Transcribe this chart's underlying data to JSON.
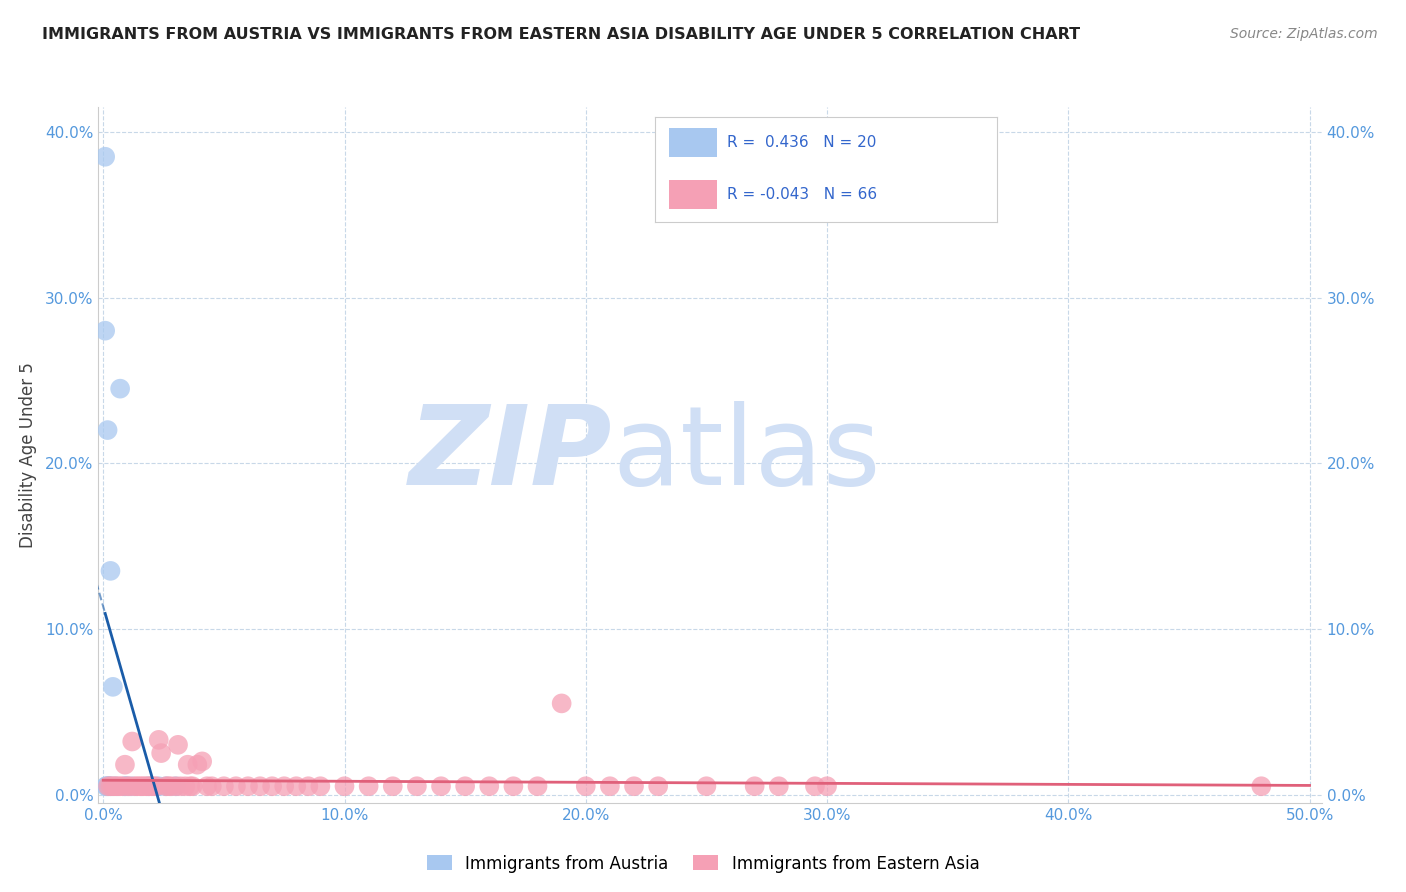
{
  "title": "IMMIGRANTS FROM AUSTRIA VS IMMIGRANTS FROM EASTERN ASIA DISABILITY AGE UNDER 5 CORRELATION CHART",
  "source": "Source: ZipAtlas.com",
  "ylabel": "Disability Age Under 5",
  "xlim": [
    -0.002,
    0.505
  ],
  "ylim": [
    -0.005,
    0.415
  ],
  "xticks": [
    0.0,
    0.1,
    0.2,
    0.3,
    0.4,
    0.5
  ],
  "xtick_labels": [
    "0.0%",
    "10.0%",
    "20.0%",
    "30.0%",
    "40.0%",
    "50.0%"
  ],
  "yticks": [
    0.0,
    0.1,
    0.2,
    0.3,
    0.4
  ],
  "ytick_labels": [
    "0.0%",
    "10.0%",
    "20.0%",
    "30.0%",
    "40.0%"
  ],
  "austria_R": 0.436,
  "austria_N": 20,
  "eastern_asia_R": -0.043,
  "eastern_asia_N": 66,
  "austria_color": "#a8c8f0",
  "austria_line_color": "#1a5ca8",
  "eastern_asia_color": "#f5a0b5",
  "eastern_asia_line_color": "#e0607a",
  "watermark_zip": "ZIP",
  "watermark_atlas": "atlas",
  "watermark_color": "#d0dff5",
  "austria_x": [
    0.0008,
    0.0008,
    0.0012,
    0.0012,
    0.0018,
    0.0022,
    0.0025,
    0.003,
    0.003,
    0.004,
    0.005,
    0.007,
    0.009,
    0.009,
    0.01,
    0.012,
    0.019,
    0.023,
    0.026,
    0.03
  ],
  "austria_y": [
    0.385,
    0.28,
    0.005,
    0.005,
    0.22,
    0.005,
    0.005,
    0.135,
    0.005,
    0.065,
    0.005,
    0.245,
    0.005,
    0.005,
    0.005,
    0.005,
    0.005,
    0.005,
    0.005,
    0.005
  ],
  "eastern_asia_x": [
    0.002,
    0.003,
    0.004,
    0.005,
    0.006,
    0.007,
    0.008,
    0.009,
    0.01,
    0.011,
    0.012,
    0.013,
    0.014,
    0.015,
    0.016,
    0.017,
    0.018,
    0.019,
    0.02,
    0.021,
    0.022,
    0.023,
    0.024,
    0.026,
    0.027,
    0.028,
    0.03,
    0.031,
    0.032,
    0.034,
    0.035,
    0.036,
    0.037,
    0.039,
    0.041,
    0.043,
    0.045,
    0.05,
    0.055,
    0.06,
    0.065,
    0.07,
    0.075,
    0.08,
    0.085,
    0.09,
    0.1,
    0.11,
    0.12,
    0.13,
    0.14,
    0.15,
    0.16,
    0.17,
    0.18,
    0.19,
    0.2,
    0.21,
    0.22,
    0.23,
    0.25,
    0.27,
    0.28,
    0.295,
    0.3,
    0.48
  ],
  "eastern_asia_y": [
    0.005,
    0.005,
    0.005,
    0.005,
    0.005,
    0.005,
    0.005,
    0.018,
    0.005,
    0.005,
    0.032,
    0.005,
    0.005,
    0.005,
    0.005,
    0.005,
    0.005,
    0.005,
    0.005,
    0.005,
    0.005,
    0.033,
    0.025,
    0.005,
    0.005,
    0.005,
    0.005,
    0.03,
    0.005,
    0.005,
    0.018,
    0.005,
    0.005,
    0.018,
    0.02,
    0.005,
    0.005,
    0.005,
    0.005,
    0.005,
    0.005,
    0.005,
    0.005,
    0.005,
    0.005,
    0.005,
    0.005,
    0.005,
    0.005,
    0.005,
    0.005,
    0.005,
    0.005,
    0.005,
    0.005,
    0.055,
    0.005,
    0.005,
    0.005,
    0.005,
    0.005,
    0.005,
    0.005,
    0.005,
    0.005,
    0.005
  ]
}
